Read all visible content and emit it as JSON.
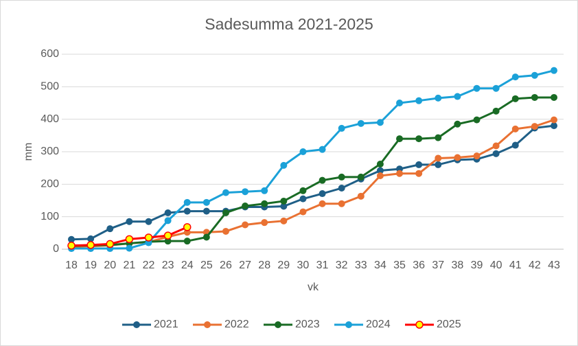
{
  "chart_data": {
    "type": "line",
    "title": "Sadesumma 2021-2025",
    "xlabel": "vk",
    "ylabel": "mm",
    "categories": [
      "18",
      "19",
      "20",
      "21",
      "22",
      "23",
      "24",
      "25",
      "26",
      "27",
      "28",
      "29",
      "30",
      "31",
      "32",
      "33",
      "34",
      "35",
      "36",
      "37",
      "38",
      "39",
      "40",
      "41",
      "42",
      "43"
    ],
    "ylim": [
      0,
      600
    ],
    "yticks": [
      0,
      100,
      200,
      300,
      400,
      500,
      600
    ],
    "grid": true,
    "legend": "bottom",
    "series": [
      {
        "name": "2021",
        "color": "#1f5f87",
        "values": [
          30,
          32,
          63,
          85,
          85,
          112,
          117,
          117,
          117,
          130,
          130,
          132,
          155,
          171,
          188,
          216,
          242,
          247,
          260,
          260,
          275,
          277,
          294,
          320,
          373,
          380
        ]
      },
      {
        "name": "2022",
        "color": "#e97132",
        "values": [
          8,
          9,
          12,
          18,
          22,
          38,
          52,
          52,
          55,
          75,
          82,
          87,
          115,
          140,
          140,
          163,
          226,
          233,
          233,
          280,
          282,
          287,
          318,
          370,
          378,
          398
        ]
      },
      {
        "name": "2023",
        "color": "#196b24",
        "values": [
          10,
          12,
          13,
          18,
          23,
          25,
          25,
          37,
          112,
          133,
          140,
          148,
          180,
          212,
          222,
          222,
          262,
          340,
          340,
          343,
          385,
          398,
          425,
          463,
          467,
          467
        ]
      },
      {
        "name": "2024",
        "color": "#1ba1d8",
        "values": [
          2,
          2,
          2,
          3,
          20,
          88,
          144,
          144,
          174,
          177,
          180,
          258,
          300,
          307,
          372,
          387,
          390,
          450,
          457,
          465,
          470,
          495,
          495,
          530,
          535,
          550
        ]
      },
      {
        "name": "2025",
        "color": "#ff0000",
        "marker_color": "#ffff00",
        "values": [
          11,
          13,
          16,
          31,
          36,
          42,
          68,
          null,
          null,
          null,
          null,
          null,
          null,
          null,
          null,
          null,
          null,
          null,
          null,
          null,
          null,
          null,
          null,
          null,
          null,
          null
        ]
      }
    ]
  }
}
